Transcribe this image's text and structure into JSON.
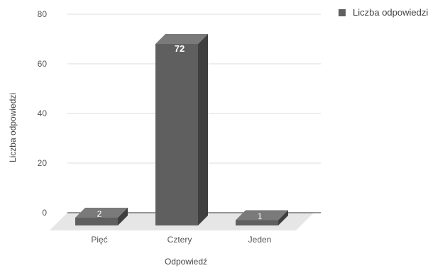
{
  "chart_data": {
    "type": "bar",
    "categories": [
      "Pięć",
      "Cztery",
      "Jeden"
    ],
    "series": [
      {
        "name": "Liczba odpowiedzi",
        "values": [
          2,
          72,
          1
        ]
      }
    ],
    "xlabel": "Odpowiedź",
    "ylabel": "Liczba odpowiedzi",
    "ylim": [
      0,
      80
    ],
    "yticks": [
      0,
      20,
      40,
      60,
      80
    ],
    "grid": true,
    "legend_position": "top-right",
    "style": "3d",
    "colors": {
      "bar_front": "#5f5f5f",
      "bar_top": "#7a7a7a",
      "bar_side": "#3f3f3f",
      "floor": "#e6e6e6",
      "grid": "#dddddd"
    }
  }
}
